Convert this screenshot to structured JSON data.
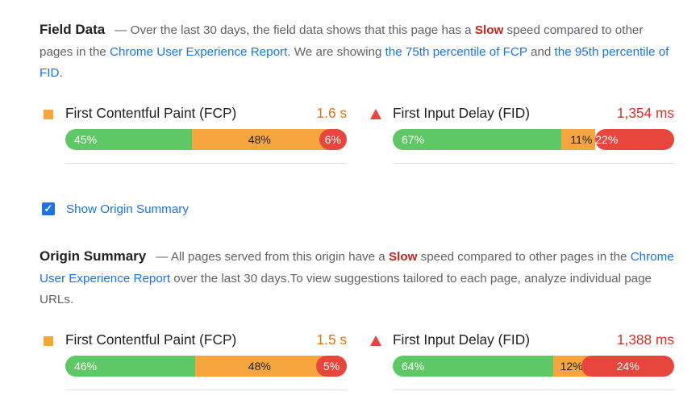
{
  "field_data": {
    "title": "Field Data",
    "desc_parts": {
      "p1": "— Over the last 30 days, the field data shows that this page has a ",
      "slow": "Slow",
      "p2": " speed compared to other pages in the ",
      "link1": "Chrome User Experience Report",
      "p3": ". We are showing ",
      "link2": "the 75th percentile of FCP",
      "p4": " and ",
      "link3": "the 95th percentile of FID",
      "p5": "."
    },
    "fcp": {
      "label": "First Contentful Paint (FCP)",
      "value": "1.6 s",
      "distribution": {
        "fast": "45%",
        "average": "48%",
        "slow": "6%"
      },
      "fractions": {
        "fast": 45,
        "average": 48,
        "slow": 6
      }
    },
    "fid": {
      "label": "First Input Delay (FID)",
      "value": "1,354 ms",
      "distribution": {
        "fast": "67%",
        "average": "11%",
        "slow": "22%"
      },
      "fractions": {
        "fast": 67,
        "average": 11,
        "slow": 22
      }
    }
  },
  "origin_toggle": {
    "label": "Show Origin Summary",
    "checked": true
  },
  "origin_summary": {
    "title": "Origin Summary",
    "desc_parts": {
      "p1": "— All pages served from this origin have a ",
      "slow": "Slow",
      "p2": " speed compared to other pages in the ",
      "link1": "Chrome User Experience Report",
      "p3": " over the last 30 days.To view suggestions tailored to each page, analyze individual page URLs."
    },
    "fcp": {
      "label": "First Contentful Paint (FCP)",
      "value": "1.5 s",
      "distribution": {
        "fast": "46%",
        "average": "48%",
        "slow": "5%"
      },
      "fractions": {
        "fast": 46,
        "average": 48,
        "slow": 5
      }
    },
    "fid": {
      "label": "First Input Delay (FID)",
      "value": "1,388 ms",
      "distribution": {
        "fast": "64%",
        "average": "12%",
        "slow": "24%"
      },
      "fractions": {
        "fast": 64,
        "average": 12,
        "slow": 24
      }
    }
  },
  "colors": {
    "fast": "#5fc866",
    "average": "#f4a53d",
    "slow": "#e8453c",
    "value_average": "#e8710a",
    "value_slow": "#d93025",
    "link": "#1a73e8"
  },
  "icons": {
    "average": "orange-square-icon",
    "slow": "red-triangle-icon",
    "check": "checkmark-icon"
  }
}
